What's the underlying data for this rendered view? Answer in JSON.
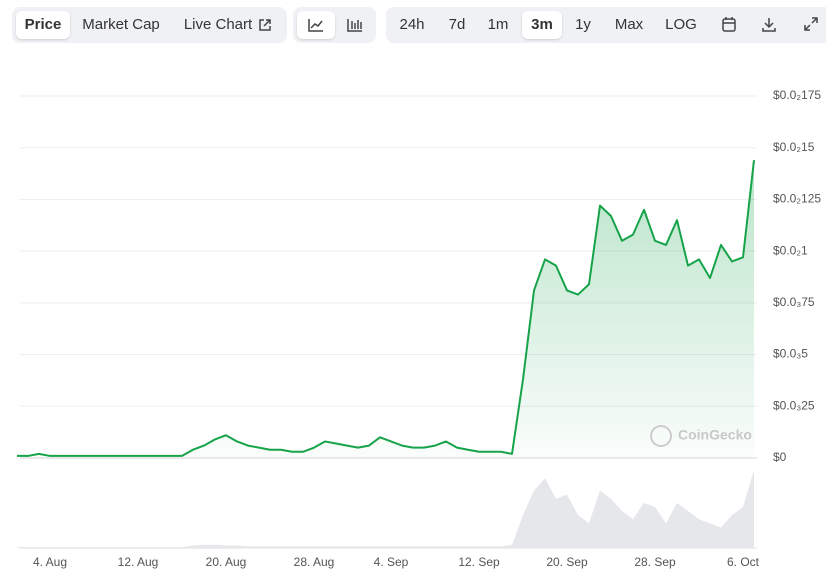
{
  "toolbar": {
    "view_tabs": [
      "Price",
      "Market Cap",
      "Live Chart"
    ],
    "ranges": [
      "24h",
      "7d",
      "1m",
      "3m",
      "1y",
      "Max",
      "LOG"
    ]
  },
  "watermark": "CoinGecko",
  "chart_data": {
    "type": "line",
    "x": [
      "1. Aug",
      "2. Aug",
      "3. Aug",
      "4. Aug",
      "5. Aug",
      "6. Aug",
      "7. Aug",
      "8. Aug",
      "9. Aug",
      "10. Aug",
      "11. Aug",
      "12. Aug",
      "13. Aug",
      "14. Aug",
      "15. Aug",
      "16. Aug",
      "17. Aug",
      "18. Aug",
      "19. Aug",
      "20. Aug",
      "21. Aug",
      "22. Aug",
      "23. Aug",
      "24. Aug",
      "25. Aug",
      "26. Aug",
      "27. Aug",
      "28. Aug",
      "29. Aug",
      "30. Aug",
      "31. Aug",
      "1. Sep",
      "2. Sep",
      "3. Sep",
      "4. Sep",
      "5. Sep",
      "6. Sep",
      "7. Sep",
      "8. Sep",
      "9. Sep",
      "10. Sep",
      "11. Sep",
      "12. Sep",
      "13. Sep",
      "14. Sep",
      "15. Sep",
      "16. Sep",
      "17. Sep",
      "18. Sep",
      "19. Sep",
      "20. Sep",
      "21. Sep",
      "22. Sep",
      "23. Sep",
      "24. Sep",
      "25. Sep",
      "26. Sep",
      "27. Sep",
      "28. Sep",
      "29. Sep",
      "30. Sep",
      "1. Oct",
      "2. Oct",
      "3. Oct",
      "4. Oct",
      "5. Oct",
      "6. Oct",
      "7. Oct"
    ],
    "series": [
      {
        "name": "Price",
        "color": "#16a34a",
        "values": [
          1e-05,
          1e-05,
          2e-05,
          1e-05,
          1e-05,
          1e-05,
          1e-05,
          1e-05,
          1e-05,
          1e-05,
          1e-05,
          1e-05,
          1e-05,
          1e-05,
          1e-05,
          1e-05,
          4e-05,
          6e-05,
          9e-05,
          0.00011,
          8e-05,
          6e-05,
          5e-05,
          4e-05,
          4e-05,
          3e-05,
          3e-05,
          5e-05,
          8e-05,
          7e-05,
          6e-05,
          5e-05,
          6e-05,
          0.0001,
          8e-05,
          6e-05,
          5e-05,
          5e-05,
          6e-05,
          8e-05,
          5e-05,
          4e-05,
          3e-05,
          3e-05,
          3e-05,
          2e-05,
          0.00038,
          0.00081,
          0.00096,
          0.00093,
          0.00081,
          0.00079,
          0.00084,
          0.00122,
          0.00117,
          0.00105,
          0.00108,
          0.0012,
          0.00105,
          0.00103,
          0.00115,
          0.00093,
          0.00096,
          0.00087,
          0.00103,
          0.00095,
          0.00097,
          0.00144
        ]
      }
    ],
    "volume": {
      "color": "#e5e7eb",
      "values": [
        1,
        1,
        1,
        1,
        1,
        1,
        1,
        1,
        1,
        1,
        1,
        1,
        1,
        1,
        1,
        1,
        3,
        4,
        4,
        3,
        3,
        2,
        2,
        2,
        2,
        2,
        2,
        2,
        2,
        2,
        2,
        2,
        2,
        2,
        2,
        2,
        2,
        2,
        2,
        2,
        2,
        2,
        2,
        2,
        2,
        4,
        40,
        70,
        85,
        60,
        65,
        40,
        30,
        70,
        60,
        45,
        35,
        55,
        50,
        30,
        55,
        45,
        35,
        30,
        25,
        40,
        50,
        95
      ]
    },
    "xticks": [
      "4. Aug",
      "12. Aug",
      "20. Aug",
      "28. Aug",
      "4. Sep",
      "12. Sep",
      "20. Sep",
      "28. Sep",
      "6. Oct"
    ],
    "ylim": [
      0,
      0.00175
    ],
    "yticks": [
      {
        "value": 0,
        "label": "$0"
      },
      {
        "value": 0.00025,
        "label": "$0.0₃25"
      },
      {
        "value": 0.0005,
        "label": "$0.0₃5"
      },
      {
        "value": 0.00075,
        "label": "$0.0₃75"
      },
      {
        "value": 0.001,
        "label": "$0.0₂1"
      },
      {
        "value": 0.00125,
        "label": "$0.0₂125"
      },
      {
        "value": 0.0015,
        "label": "$0.0₂15"
      },
      {
        "value": 0.00175,
        "label": "$0.0₂175"
      }
    ],
    "grid": true
  }
}
